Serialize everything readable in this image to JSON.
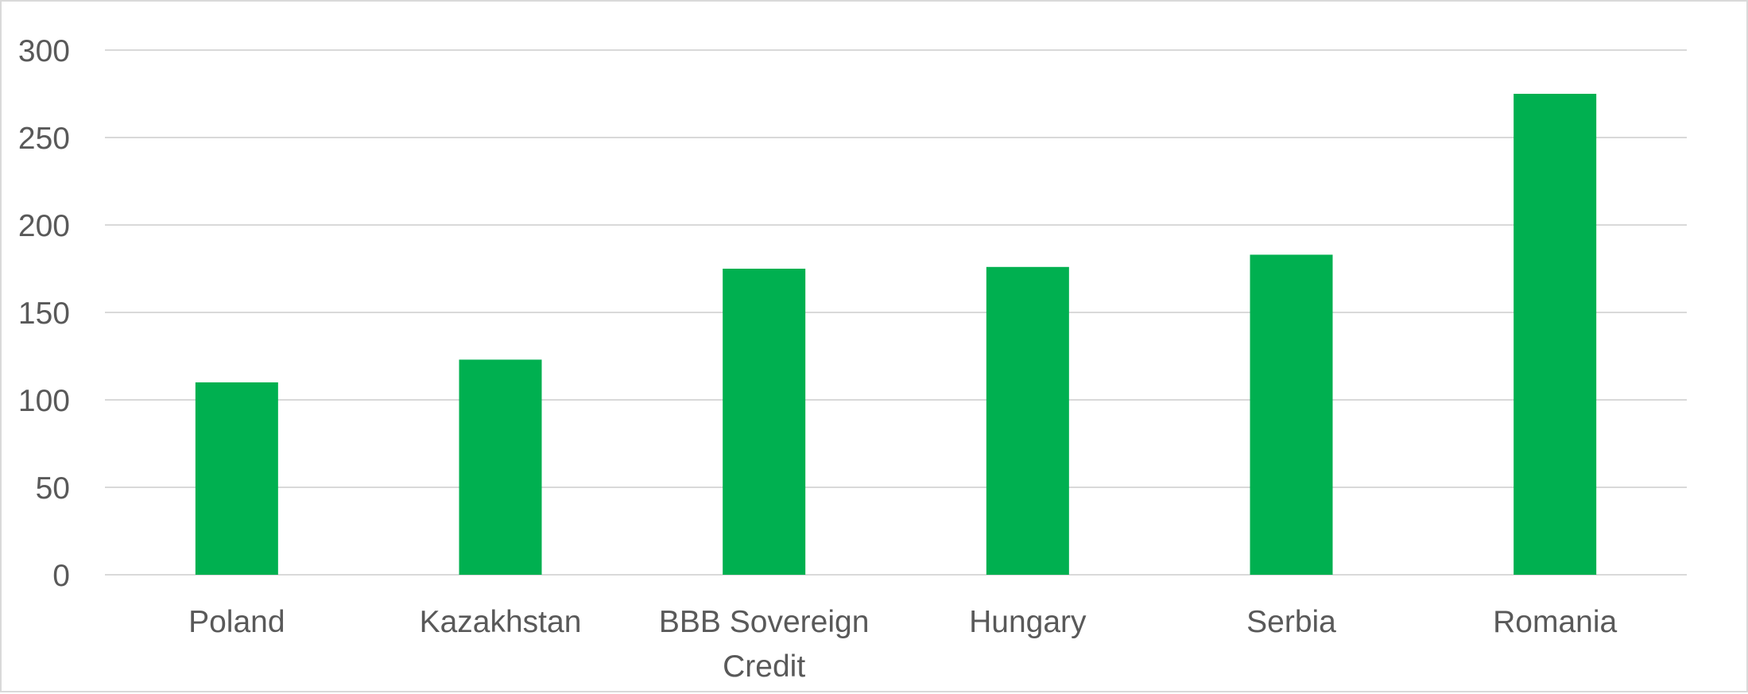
{
  "chart_data": {
    "type": "bar",
    "title": "",
    "xlabel": "",
    "ylabel": "",
    "categories": [
      [
        "Poland"
      ],
      [
        "Kazakhstan"
      ],
      [
        "BBB Sovereign",
        "Credit"
      ],
      [
        "Hungary"
      ],
      [
        "Serbia"
      ],
      [
        "Romania"
      ]
    ],
    "values": [
      110,
      123,
      175,
      176,
      183,
      275
    ],
    "ylim": [
      0,
      300
    ],
    "yticks": [
      "0",
      "50",
      "100",
      "150",
      "200",
      "250",
      "300"
    ],
    "grid": true,
    "legend": "none",
    "colors": {
      "bar": "#00b050",
      "grid": "#d9d9d9",
      "text": "#595959"
    }
  }
}
